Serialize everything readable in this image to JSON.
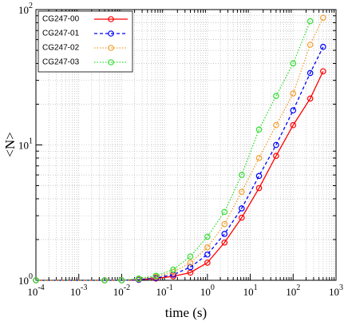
{
  "chart_data": {
    "type": "line",
    "xlabel": "time (s)",
    "ylabel": "<N>",
    "x": [
      0.0001,
      0.004,
      0.01,
      0.025,
      0.063,
      0.16,
      0.4,
      1,
      2.5,
      6.3,
      16,
      40,
      100,
      250,
      500
    ],
    "series": [
      {
        "name": "CG247-00",
        "color": "#ff0000",
        "dash": "solid",
        "values": [
          1,
          1,
          1,
          1.01,
          1.03,
          1.07,
          1.14,
          1.35,
          1.9,
          2.9,
          4.8,
          8.3,
          14,
          22,
          35
        ]
      },
      {
        "name": "CG247-01",
        "color": "#0000ff",
        "dash": "dashed",
        "values": [
          1,
          1,
          1,
          1.01,
          1.04,
          1.1,
          1.25,
          1.55,
          2.2,
          3.4,
          5.9,
          10,
          18,
          34,
          53
        ]
      },
      {
        "name": "CG247-02",
        "color": "#f0a030",
        "dash": "dotted",
        "values": [
          1,
          1,
          1,
          1.02,
          1.06,
          1.15,
          1.35,
          1.75,
          2.6,
          4.5,
          8,
          14,
          24,
          55,
          87
        ]
      },
      {
        "name": "CG247-03",
        "color": "#33dd33",
        "dash": "dotted",
        "values": [
          1,
          1,
          1,
          1.03,
          1.08,
          1.2,
          1.5,
          2.1,
          3.2,
          6,
          13,
          23,
          40,
          82,
          null
        ]
      }
    ],
    "xscale": "log",
    "yscale": "log",
    "xlim": [
      0.0001,
      1000
    ],
    "ylim": [
      1,
      100
    ],
    "xticks": [
      {
        "value": 0.0001,
        "label": "10^-4"
      },
      {
        "value": 0.001,
        "label": "10^-3"
      },
      {
        "value": 0.01,
        "label": "10^-2"
      },
      {
        "value": 0.1,
        "label": "10^-1"
      },
      {
        "value": 1,
        "label": "10^0"
      },
      {
        "value": 10,
        "label": "10^1"
      },
      {
        "value": 100,
        "label": "10^2"
      },
      {
        "value": 1000,
        "label": "10^3"
      }
    ],
    "yticks": [
      {
        "value": 1,
        "label": "10^0"
      },
      {
        "value": 10,
        "label": "10^1"
      },
      {
        "value": 100,
        "label": "10^2"
      }
    ],
    "grid": true,
    "legend": "upper left"
  }
}
